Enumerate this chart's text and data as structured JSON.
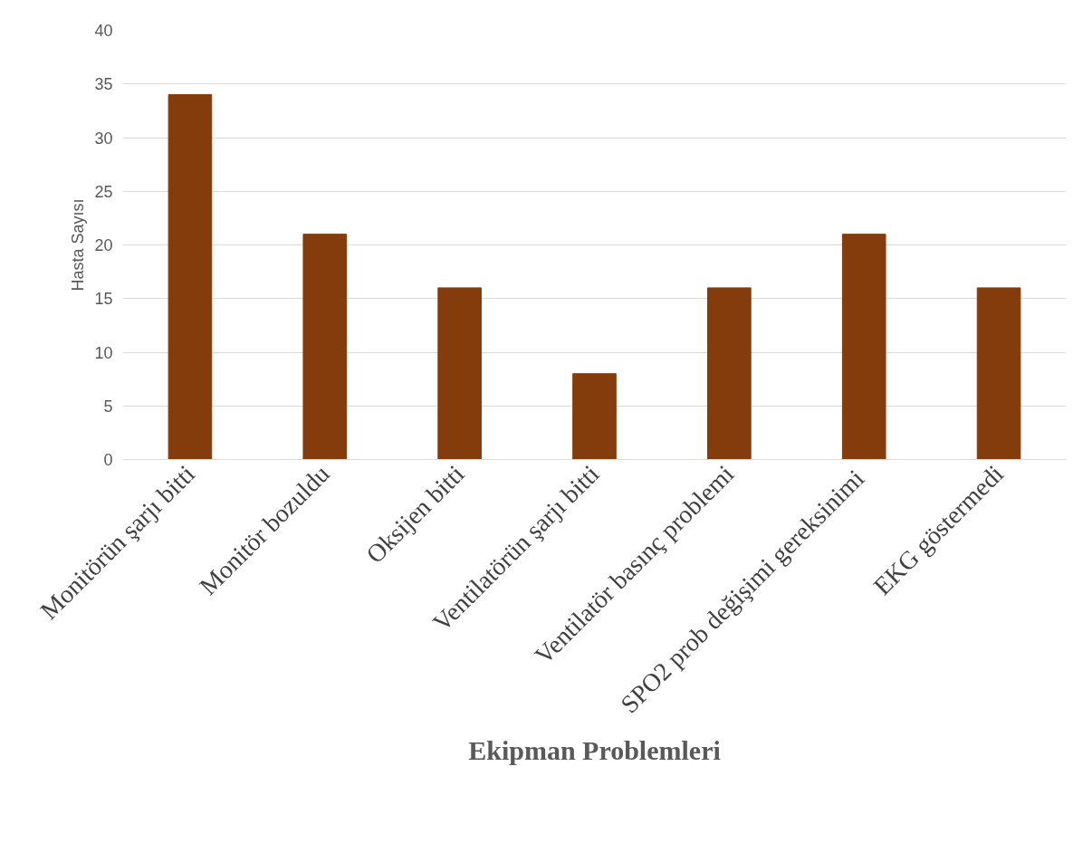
{
  "chart_data": {
    "type": "bar",
    "categories": [
      "Monitörün şarjı bitti",
      "Monitör bozuldu",
      "Oksijen bitti",
      "Ventilatörün şarjı bitti",
      "Ventilatör basınç problemi",
      "SPO2  prob değişimi gereksinimi",
      "EKG göstermedi"
    ],
    "values": [
      34,
      21,
      16,
      8,
      16,
      21,
      16
    ],
    "color": "#843c0c",
    "xlabel": "Ekipman Problemleri",
    "ylabel": "Hasta Sayısı",
    "ylim": [
      0,
      40
    ],
    "yticks": [
      0,
      5,
      10,
      15,
      20,
      25,
      30,
      35,
      40
    ],
    "grid": "y"
  }
}
